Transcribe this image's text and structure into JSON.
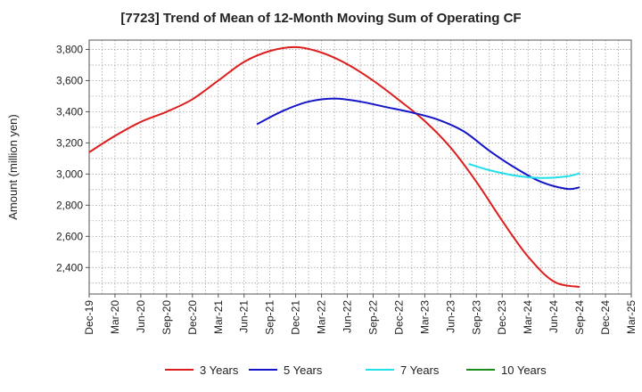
{
  "chart_data": {
    "type": "line",
    "title": "[7723]  Trend of Mean of 12-Month Moving Sum of Operating CF",
    "xlabel": "",
    "ylabel": "Amount (million yen)",
    "ylim": [
      2230,
      3860
    ],
    "y_ticks": [
      2400,
      2600,
      2800,
      3000,
      3200,
      3400,
      3600,
      3800
    ],
    "y_tick_labels": [
      "2,400",
      "2,600",
      "2,800",
      "3,000",
      "3,200",
      "3,400",
      "3,600",
      "3,800"
    ],
    "x_tick_labels": [
      "Dec-19",
      "Mar-20",
      "Jun-20",
      "Sep-20",
      "Dec-20",
      "Mar-21",
      "Jun-21",
      "Sep-21",
      "Dec-21",
      "Mar-22",
      "Jun-22",
      "Sep-22",
      "Dec-22",
      "Mar-23",
      "Jun-23",
      "Sep-23",
      "Dec-23",
      "Mar-24",
      "Jun-24",
      "Sep-24",
      "Dec-24",
      "Mar-25"
    ],
    "grid": true,
    "legend_position": "bottom",
    "series": [
      {
        "name": "3 Years",
        "color": "#dd1e1e",
        "points": [
          [
            0,
            3140
          ],
          [
            1,
            3245
          ],
          [
            2,
            3335
          ],
          [
            3,
            3400
          ],
          [
            4,
            3480
          ],
          [
            5,
            3600
          ],
          [
            6,
            3720
          ],
          [
            7,
            3790
          ],
          [
            8,
            3815
          ],
          [
            9,
            3780
          ],
          [
            10,
            3705
          ],
          [
            11,
            3600
          ],
          [
            12,
            3475
          ],
          [
            13,
            3340
          ],
          [
            14,
            3170
          ],
          [
            15,
            2950
          ],
          [
            16,
            2700
          ],
          [
            17,
            2470
          ],
          [
            18,
            2310
          ],
          [
            19,
            2275
          ]
        ]
      },
      {
        "name": "5 Years",
        "color": "#1414c8",
        "points": [
          [
            6.5,
            3320
          ],
          [
            7.5,
            3405
          ],
          [
            8.5,
            3465
          ],
          [
            9.5,
            3485
          ],
          [
            10.5,
            3465
          ],
          [
            11.5,
            3430
          ],
          [
            12.5,
            3395
          ],
          [
            13.5,
            3350
          ],
          [
            14.5,
            3275
          ],
          [
            15.5,
            3150
          ],
          [
            16.5,
            3040
          ],
          [
            17.5,
            2950
          ],
          [
            18.5,
            2905
          ],
          [
            19,
            2915
          ]
        ]
      },
      {
        "name": "7 Years",
        "color": "#22e0ea",
        "points": [
          [
            14.7,
            3065
          ],
          [
            15.5,
            3025
          ],
          [
            16.5,
            2990
          ],
          [
            17.5,
            2975
          ],
          [
            18.5,
            2985
          ],
          [
            19,
            3005
          ]
        ]
      },
      {
        "name": "10 Years",
        "color": "#1a8c1a",
        "points": []
      }
    ]
  }
}
